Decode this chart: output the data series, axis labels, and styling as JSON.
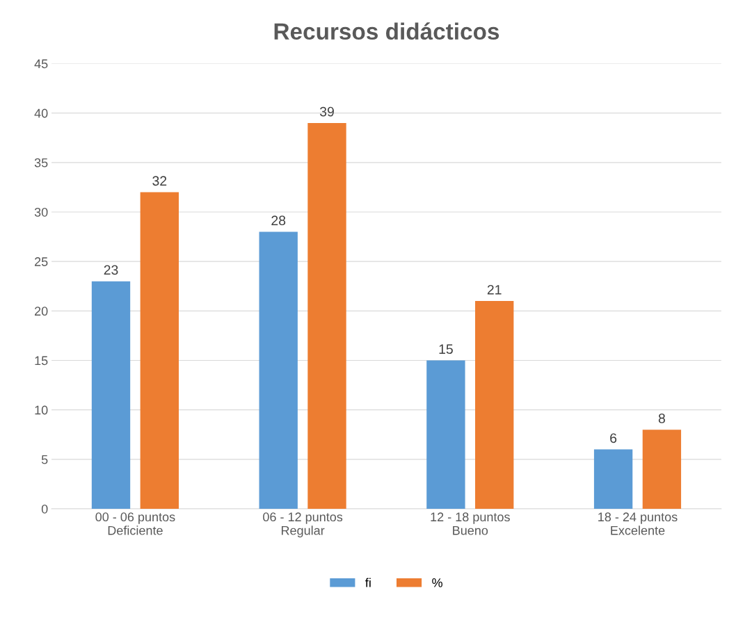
{
  "chart_data": {
    "type": "bar",
    "title": "Recursos didácticos",
    "categories": [
      "00 - 06 puntos\nDeficiente",
      "06 - 12 puntos\nRegular",
      "12 - 18 puntos\nBueno",
      "18 - 24 puntos\nExcelente"
    ],
    "series": [
      {
        "name": "fi",
        "color": "#5b9bd5",
        "values": [
          23,
          28,
          15,
          6
        ]
      },
      {
        "name": "%",
        "color": "#ed7d31",
        "values": [
          32,
          39,
          21,
          8
        ]
      }
    ],
    "ylim": [
      0,
      45
    ],
    "yticks": [
      0,
      5,
      10,
      15,
      20,
      25,
      30,
      35,
      40,
      45
    ],
    "grid": "y",
    "legend": "bottom",
    "data_labels": true
  }
}
